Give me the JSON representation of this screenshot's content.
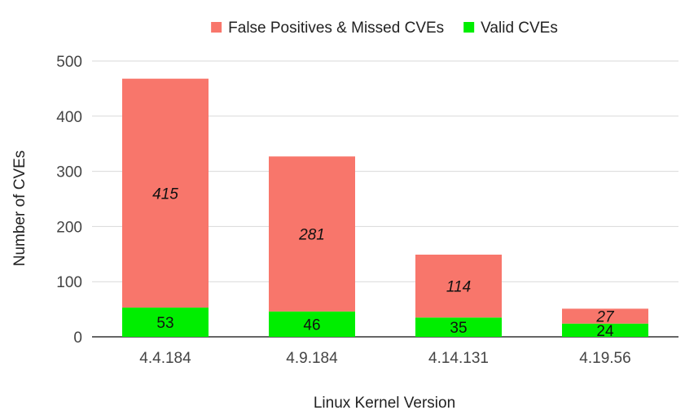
{
  "chart_data": {
    "type": "bar",
    "stacked": true,
    "categories": [
      "4.4.184",
      "4.9.184",
      "4.14.131",
      "4.19.56"
    ],
    "series": [
      {
        "name": "Valid CVEs",
        "values": [
          53,
          46,
          35,
          24
        ],
        "color": "#00ee00"
      },
      {
        "name": "False Positives & Missed CVEs",
        "values": [
          415,
          281,
          114,
          27
        ],
        "color": "#f8766b"
      }
    ],
    "legend": {
      "placement": "top-center",
      "order": [
        "False Positives & Missed CVEs",
        "Valid CVEs"
      ]
    },
    "xlabel": "Linux Kernel Version",
    "ylabel": "Number of CVEs",
    "ylim": [
      0,
      500
    ],
    "yticks": [
      0,
      100,
      200,
      300,
      400,
      500
    ],
    "grid": true
  }
}
